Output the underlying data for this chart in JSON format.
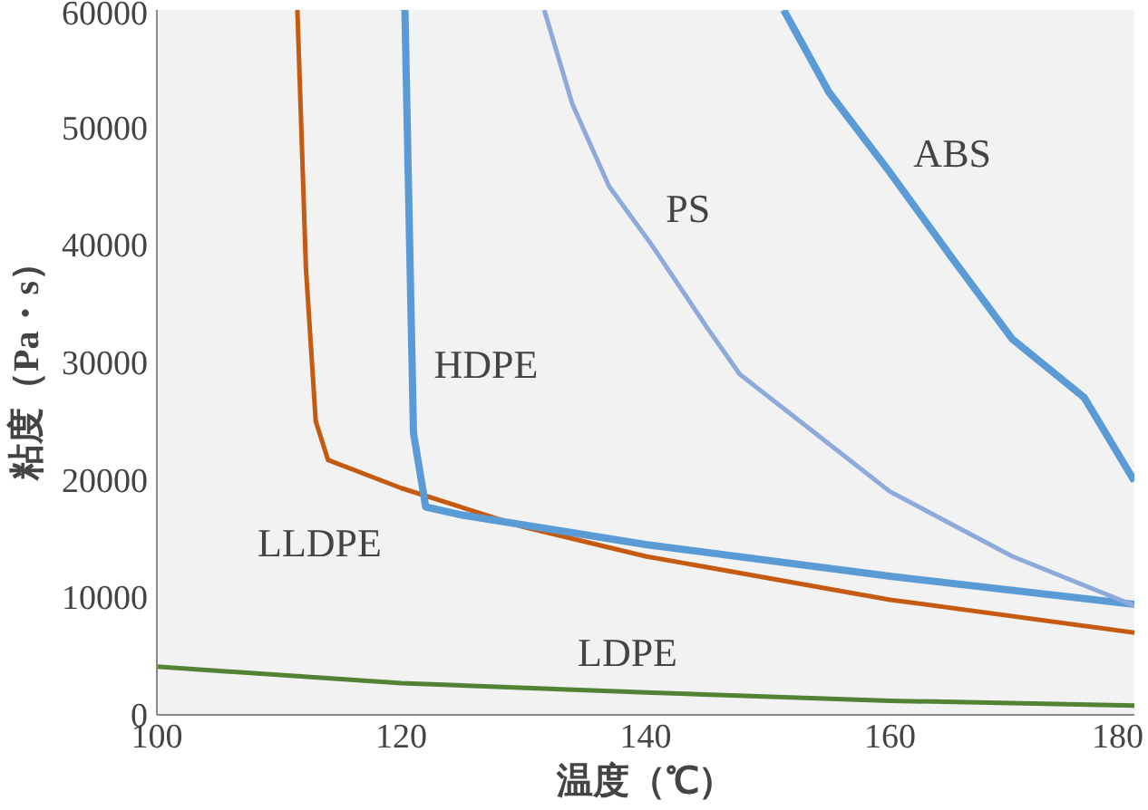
{
  "chart_data": {
    "type": "line",
    "xlabel": "温度（℃）",
    "ylabel": "粘度（Pa・s）",
    "xlim": [
      100,
      180
    ],
    "ylim": [
      0,
      60000
    ],
    "xticks": [
      100,
      120,
      140,
      160,
      180
    ],
    "yticks": [
      0,
      10000,
      20000,
      30000,
      40000,
      50000,
      60000
    ],
    "grid": false,
    "legend": false,
    "series": [
      {
        "name": "LDPE",
        "color": "#548235",
        "x": [
          100,
          120,
          140,
          160,
          180
        ],
        "values": [
          4100,
          2700,
          1900,
          1200,
          800
        ]
      },
      {
        "name": "LLDPE",
        "color": "#c55a11",
        "x": [
          111.5,
          112.2,
          113,
          114,
          120,
          130,
          140,
          160,
          180
        ],
        "values": [
          60000,
          38000,
          25000,
          21700,
          19300,
          16000,
          13500,
          9800,
          7000
        ]
      },
      {
        "name": "HDPE",
        "color": "#5b9bd5",
        "x": [
          120.3,
          121,
          122,
          125,
          140,
          160,
          180
        ],
        "values": [
          60000,
          24000,
          17700,
          17000,
          14500,
          11800,
          9400
        ]
      },
      {
        "name": "PS",
        "color": "#8eaadb",
        "x": [
          131.7,
          134,
          137,
          140.5,
          145,
          147.7,
          160,
          170,
          180
        ],
        "values": [
          60000,
          52000,
          45000,
          40000,
          33000,
          29000,
          19000,
          13500,
          9300
        ]
      },
      {
        "name": "ABS",
        "color": "#5b9bd5",
        "x": [
          151.3,
          155,
          159.9,
          165,
          170,
          175.9,
          180
        ],
        "values": [
          60000,
          53000,
          46300,
          39000,
          32000,
          27000,
          19900
        ]
      }
    ]
  }
}
